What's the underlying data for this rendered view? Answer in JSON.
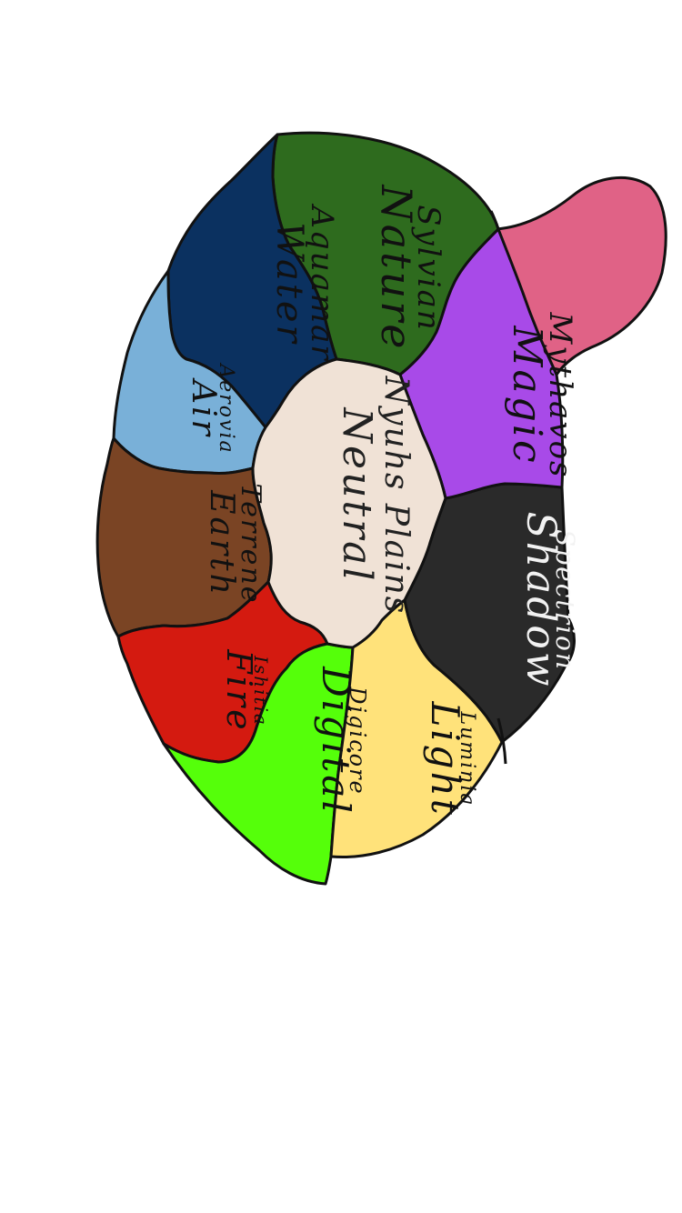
{
  "map": {
    "regions": [
      {
        "id": "neutral",
        "name": "Neutral",
        "subname": "Nyuhs Plains",
        "color": "#f0e2d6",
        "text_color": "#222222"
      },
      {
        "id": "nature",
        "name": "Nature",
        "subname": "Sylvian",
        "color": "#2e6b1e",
        "text_color": "#111111"
      },
      {
        "id": "water",
        "name": "Water",
        "subname": "Aquamar",
        "color": "#0b3160",
        "text_color": "#111111"
      },
      {
        "id": "air",
        "name": "Air",
        "subname": "Aerovia",
        "color": "#79b0d8",
        "text_color": "#111111"
      },
      {
        "id": "earth",
        "name": "Earth",
        "subname": "Terrene",
        "color": "#7a4424",
        "text_color": "#111111"
      },
      {
        "id": "fire",
        "name": "Fire",
        "subname": "Ishitia",
        "color": "#d41a10",
        "text_color": "#111111"
      },
      {
        "id": "digital",
        "name": "Digital",
        "subname": "Digicore",
        "color": "#55ff0a",
        "text_color": "#111111"
      },
      {
        "id": "light",
        "name": "Light",
        "subname": "Luminia",
        "color": "#ffe27a",
        "text_color": "#111111"
      },
      {
        "id": "shadow",
        "name": "Shadow",
        "subname": "Spectrion",
        "color": "#2a2a2a",
        "text_color": "#f2f2f2"
      },
      {
        "id": "magic",
        "name": "Magic",
        "subname": "Mythavos",
        "color": "#a84ae8",
        "text_color": "#111111"
      },
      {
        "id": "pink-island",
        "name": "",
        "subname": "",
        "color": "#e06286",
        "text_color": "#111111"
      }
    ]
  }
}
